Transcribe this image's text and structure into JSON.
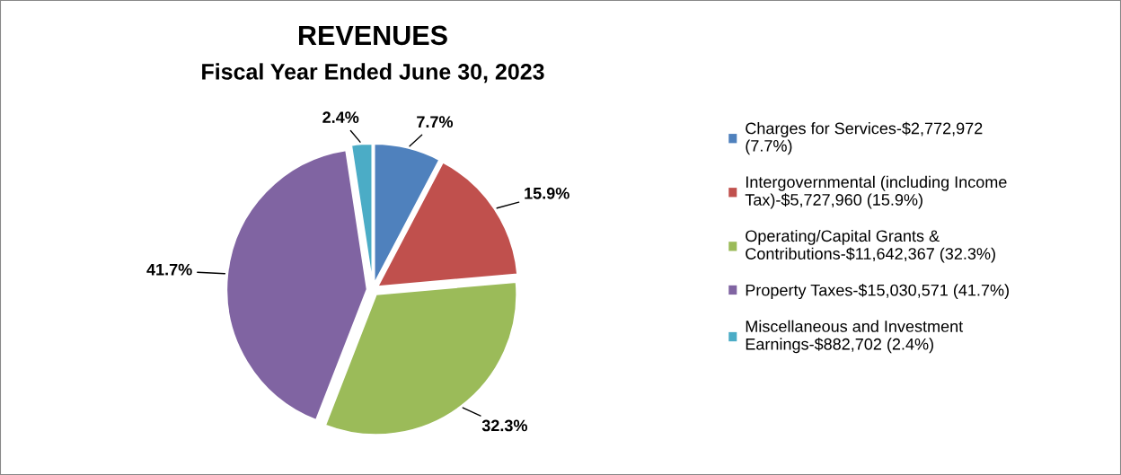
{
  "chart_data": {
    "type": "pie",
    "title": "REVENUES",
    "subtitle": "Fiscal Year Ended June 30, 2023",
    "categories": [
      "Charges for Services-$2,772,972 (7.7%)",
      "Intergovernmental (including Income Tax)-$5,727,960 (15.9%)",
      "Operating/Capital Grants & Contributions-$11,642,367 (32.3%)",
      "Property Taxes-$15,030,571 (41.7%)",
      "Miscellaneous and Investment Earnings-$882,702 (2.4%)"
    ],
    "values": [
      7.7,
      15.9,
      32.3,
      41.7,
      2.4
    ],
    "colors": [
      "#4f81bd",
      "#c0504d",
      "#9bbb59",
      "#8064a2",
      "#4bacc6"
    ],
    "value_labels": [
      "7.7%",
      "15.9%",
      "32.3%",
      "41.7%",
      "2.4%"
    ],
    "legend": "right"
  }
}
